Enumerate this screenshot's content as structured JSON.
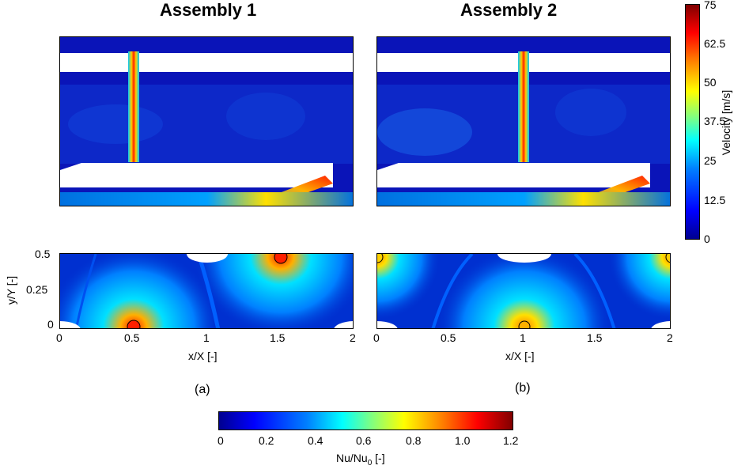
{
  "titles": {
    "left": "Assembly 1",
    "right": "Assembly 2"
  },
  "velocity_colorbar": {
    "label": "Velocity [m/s]",
    "ticks": [
      "75",
      "62.5",
      "50",
      "37.5",
      "25",
      "12.5",
      "0"
    ]
  },
  "nu_colorbar": {
    "label_main": "Nu/Nu",
    "label_sub": "0",
    "label_tail": " [-]",
    "ticks": [
      "0",
      "0.2",
      "0.4",
      "0.6",
      "0.8",
      "1.0",
      "1.2"
    ]
  },
  "bottom_axes": {
    "ylabel": "y/Y [-]",
    "yticks": [
      "0.5",
      "0.25",
      "0"
    ],
    "left_xticks": [
      "0",
      "0.5",
      "1",
      "1.5",
      "2"
    ],
    "right_xticks": [
      "0",
      "0.5",
      "1",
      "1.5",
      "2"
    ],
    "xlabel_left": "x/X [-]",
    "xlabel_right": "x/X [-]"
  },
  "captions": {
    "a": "(a)",
    "b": "(b)"
  },
  "colors": {
    "dark_blue": "#0a14b8",
    "jet_red": "#ff2000",
    "white": "#ffffff"
  }
}
